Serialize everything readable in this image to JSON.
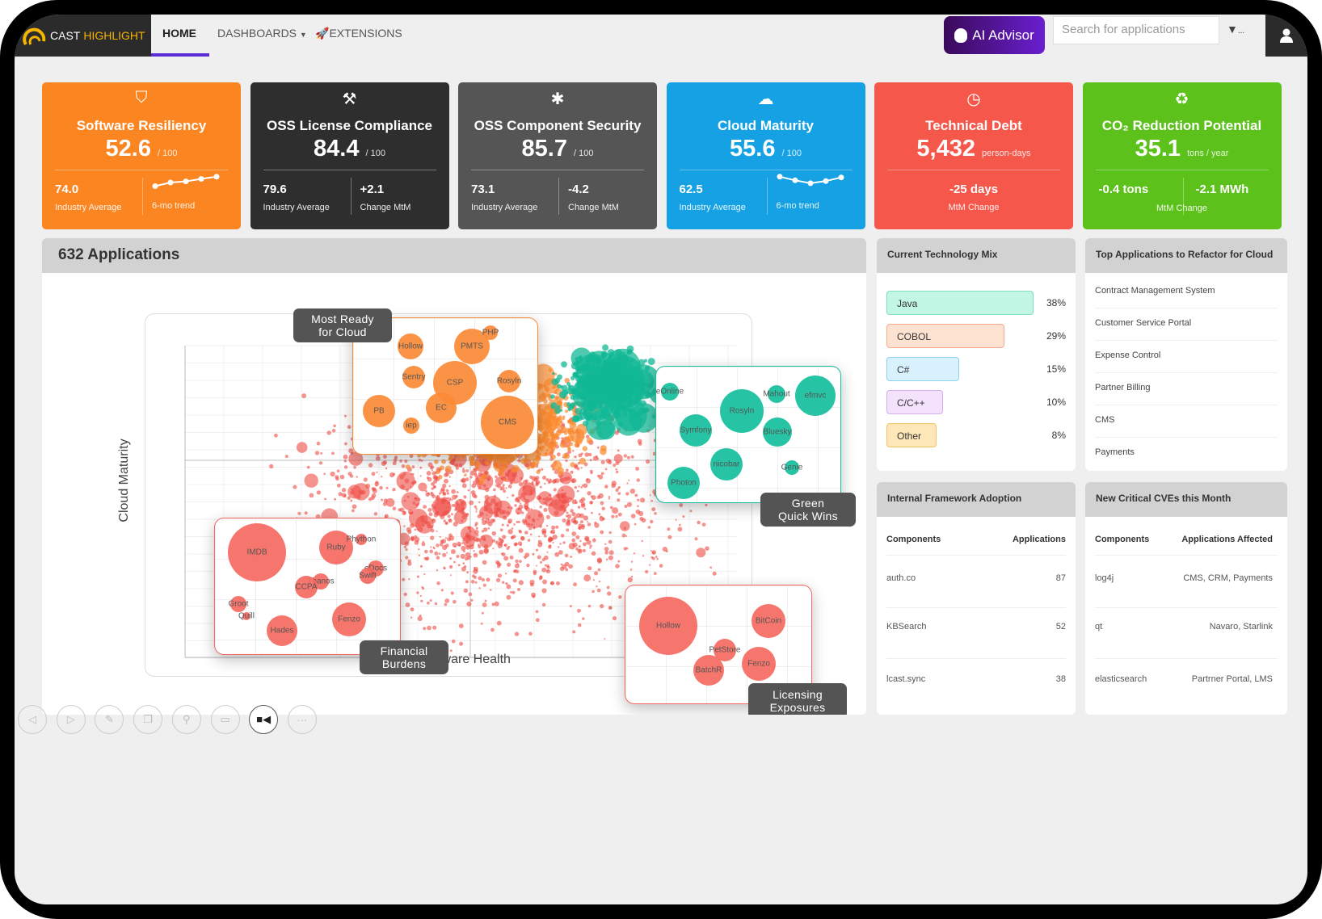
{
  "nav": {
    "brand1": "CAST",
    "brand2": "HIGHLIGHT",
    "home": "HOME",
    "dashboards": "DASHBOARDS",
    "extensions": "EXTENSIONS",
    "ai_advisor": "AI Advisor",
    "search_placeholder": "Search for applications",
    "filter_more": "..."
  },
  "tiles": [
    {
      "title": "Software Resiliency",
      "value": "52.6",
      "unit": "/ 100",
      "left_value": "74.0",
      "left_label": "Industry Average",
      "right_label": "6-mo trend",
      "trend": [
        1,
        2,
        2.3,
        3,
        3.6
      ],
      "color": "#fb8521",
      "icon": "shield-icon"
    },
    {
      "title": "OSS License Compliance",
      "value": "84.4",
      "unit": "/ 100",
      "left_value": "79.6",
      "left_label": "Industry Average",
      "right_value": "+2.1",
      "right_label": "Change MtM",
      "color": "#2e2e2e",
      "icon": "gavel-icon"
    },
    {
      "title": "OSS Component Security",
      "value": "85.7",
      "unit": "/ 100",
      "left_value": "73.1",
      "left_label": "Industry Average",
      "right_value": "-4.2",
      "right_label": "Change MtM",
      "color": "#555555",
      "icon": "bug-icon"
    },
    {
      "title": "Cloud Maturity",
      "value": "55.6",
      "unit": "/ 100",
      "left_value": "62.5",
      "left_label": "Industry Average",
      "right_label": "6-mo trend",
      "trend": [
        3.6,
        2.6,
        1.8,
        2.4,
        3.4
      ],
      "color": "#15a1e3",
      "icon": "cloud-icon"
    },
    {
      "title": "Technical Debt",
      "value": "5,432",
      "unit": "person-days",
      "center_value": "-25 days",
      "center_label": "MtM Change",
      "color": "#f5574b",
      "icon": "clock-icon"
    },
    {
      "title": "CO₂ Reduction Potential",
      "value": "35.1",
      "unit": "tons / year",
      "left_value": "-0.4 tons",
      "right_value": "-2.1 MWh",
      "center_label": "MtM Change",
      "color": "#5cc11b",
      "icon": "recycle-icon"
    }
  ],
  "apps": {
    "title": "632 Applications",
    "xlabel": "Software Health",
    "ylabel": "Cloud Maturity",
    "clusters": [
      {
        "label": "Most Ready for Cloud",
        "color": "#fb8a36",
        "bubbles": [
          "Hollow",
          "PMTS",
          "PHP",
          "Sentry",
          "CSP",
          "Rosyln",
          "PB",
          "EC",
          "iep",
          "CMS"
        ]
      },
      {
        "label": "Green Quick Wins",
        "color": "#14bf9c",
        "bubbles": [
          "eOnline",
          "Rosyln",
          "Mahout",
          "efmvc",
          "Symfony",
          "Bluesky",
          "nicobar",
          "Genie",
          "Photon"
        ]
      },
      {
        "label": "Financial Burdens",
        "color": "#f5695f",
        "bubbles": [
          "IMDB",
          "Ruby",
          "Phython",
          "eDocs",
          "Swift",
          "Thanos",
          "CCPA",
          "Groot",
          "Quill",
          "Hades",
          "Fenzo"
        ]
      },
      {
        "label": "Licensing Exposures",
        "color": "#f5695f",
        "bubbles": [
          "Hollow",
          "BitCoin",
          "PetStore",
          "BatchR",
          "Fenzo"
        ]
      }
    ]
  },
  "toolbar": [
    "previous-icon",
    "next-icon",
    "pen-icon",
    "layers-icon",
    "zoom-icon",
    "caption-icon",
    "video-icon",
    "more-icon"
  ],
  "tech_mix": {
    "title": "Current Technology Mix",
    "items": [
      {
        "label": "Java",
        "pct": 38,
        "pct_text": "38%",
        "bg": "#c2f7e6",
        "border": "#7ddfc2"
      },
      {
        "label": "COBOL",
        "pct": 29,
        "pct_text": "29%",
        "bg": "#fde2d2",
        "border": "#f5b08a"
      },
      {
        "label": "C#",
        "pct": 15,
        "pct_text": "15%",
        "bg": "#d7f2fd",
        "border": "#8cd3f0"
      },
      {
        "label": "C/C++",
        "pct": 10,
        "pct_text": "10%",
        "bg": "#f4e2fd",
        "border": "#d5aef0"
      },
      {
        "label": "Other",
        "pct": 8,
        "pct_text": "8%",
        "bg": "#fde6b8",
        "border": "#f2c462"
      }
    ]
  },
  "refactor": {
    "title": "Top Applications to Refactor for Cloud",
    "items": [
      "Contract Management System",
      "Customer Service Portal",
      "Expense Control",
      "Partner Billing",
      "CMS",
      "Payments"
    ]
  },
  "framework": {
    "title": "Internal Framework Adoption",
    "col1": "Components",
    "col2": "Applications",
    "rows": [
      [
        "auth.co",
        "87"
      ],
      [
        "KBSearch",
        "52"
      ],
      [
        "lcast.sync",
        "38"
      ]
    ]
  },
  "cves": {
    "title": "New Critical CVEs this Month",
    "col1": "Components",
    "col2": "Applications Affected",
    "rows": [
      [
        "log4j",
        "CMS, CRM, Payments"
      ],
      [
        "qt",
        "Navaro, Starlink"
      ],
      [
        "elasticsearch",
        "Partrner Portal, LMS"
      ]
    ]
  }
}
